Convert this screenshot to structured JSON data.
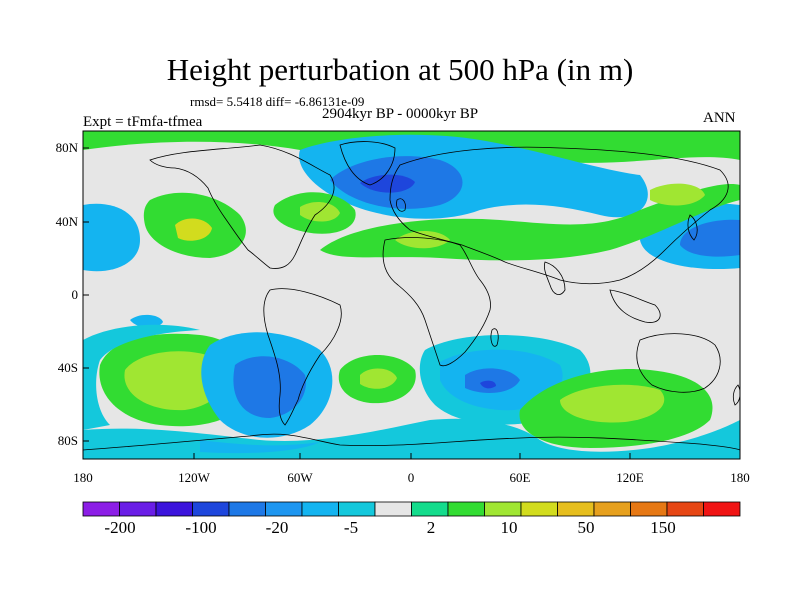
{
  "title": "Height perturbation at 500 hPa (in m)",
  "stats": "rmsd= 5.5418 diff= -6.86131e-09",
  "period": "2904kyr BP - 0000kyr BP",
  "experiment": "Expt = tFmfa-tfmea",
  "season": "ANN",
  "lat_labels": [
    "80N",
    "40N",
    "0",
    "40S",
    "80S"
  ],
  "lon_labels": [
    "180",
    "120W",
    "60W",
    "0",
    "60E",
    "120E",
    "180"
  ],
  "colorbar": {
    "colors": [
      "#8c1ee6",
      "#6a1ee6",
      "#3c14dc",
      "#1e46dc",
      "#1e78e6",
      "#1e96f0",
      "#14b4f0",
      "#14c8dc",
      "#e6e6e6",
      "#14dc8c",
      "#32dc32",
      "#a0e632",
      "#d2dc1e",
      "#e6be1e",
      "#e6a01e",
      "#e67814",
      "#e64614",
      "#f01414"
    ],
    "labels": [
      "-200",
      "-100",
      "-20",
      "-5",
      "2",
      "10",
      "50",
      "150"
    ]
  },
  "colors": {
    "neutral": "#e6e6e6",
    "weak_negative": "#14c8dc",
    "negative": "#14b4f0",
    "strong_negative": "#1e78e6",
    "very_strong_negative": "#1e46dc",
    "weak_positive": "#14dc8c",
    "positive": "#32dc32",
    "strong_positive": "#a0e632",
    "very_strong_positive": "#d2dc1e",
    "coastline": "#000000"
  }
}
